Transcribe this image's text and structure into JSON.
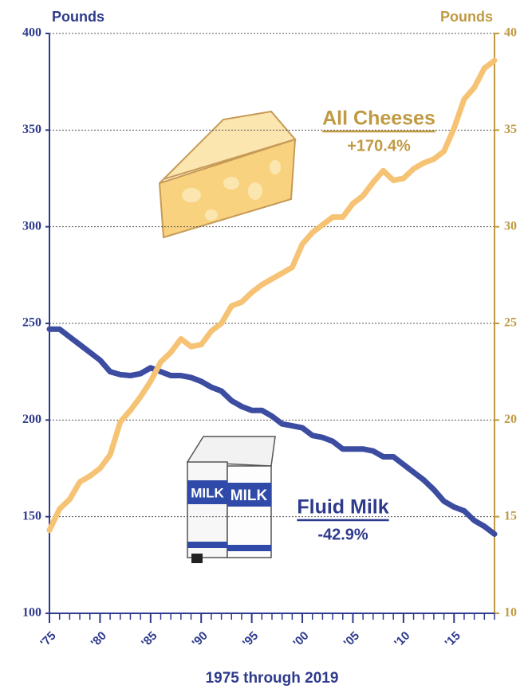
{
  "chart_data": {
    "type": "line",
    "y_label": "Pounds",
    "y2_label": "Pounds",
    "x_label": "1975 through 2019",
    "x": [
      1975,
      1976,
      1977,
      1978,
      1979,
      1980,
      1981,
      1982,
      1983,
      1984,
      1985,
      1986,
      1987,
      1988,
      1989,
      1990,
      1991,
      1992,
      1993,
      1994,
      1995,
      1996,
      1997,
      1998,
      1999,
      2000,
      2001,
      2002,
      2003,
      2004,
      2005,
      2006,
      2007,
      2008,
      2009,
      2010,
      2011,
      2012,
      2013,
      2014,
      2015,
      2016,
      2017,
      2018,
      2019
    ],
    "xlim": [
      1975,
      2019
    ],
    "xticks": [
      {
        "value": 1975,
        "label": "'75"
      },
      {
        "value": 1980,
        "label": "'80"
      },
      {
        "value": 1985,
        "label": "'85"
      },
      {
        "value": 1990,
        "label": "'90"
      },
      {
        "value": 1995,
        "label": "'95"
      },
      {
        "value": 2000,
        "label": "'00"
      },
      {
        "value": 2005,
        "label": "'05"
      },
      {
        "value": 2010,
        "label": "'10"
      },
      {
        "value": 2015,
        "label": "'15"
      }
    ],
    "ylim": [
      100,
      400
    ],
    "yticks": [
      100,
      150,
      200,
      250,
      300,
      350,
      400
    ],
    "y2lim": [
      10,
      40
    ],
    "y2ticks": [
      10,
      15,
      20,
      25,
      30,
      35,
      40
    ],
    "grid": true,
    "series": [
      {
        "name": "Fluid Milk",
        "change_label": "-42.9%",
        "color": "#3c4ca0",
        "axis": "y",
        "values": [
          247,
          247,
          243,
          239,
          235,
          231,
          225,
          223.5,
          223,
          224,
          227,
          225,
          223,
          223,
          222,
          220,
          217,
          215,
          210,
          207,
          205,
          205,
          202,
          198,
          197,
          196,
          192,
          191,
          189,
          185,
          185,
          185,
          184,
          181,
          181,
          177,
          173,
          169,
          164,
          158,
          155,
          153,
          148,
          145,
          141
        ]
      },
      {
        "name": "All Cheeses",
        "change_label": "+170.4%",
        "color": "#f6c374",
        "axis": "y2",
        "values": [
          14.3,
          15.4,
          15.9,
          16.8,
          17.1,
          17.5,
          18.2,
          19.9,
          20.5,
          21.2,
          22.0,
          23.0,
          23.5,
          24.2,
          23.8,
          23.9,
          24.6,
          25.0,
          25.9,
          26.1,
          26.6,
          27.0,
          27.3,
          27.6,
          27.9,
          29.1,
          29.7,
          30.1,
          30.5,
          30.5,
          31.2,
          31.6,
          32.3,
          32.9,
          32.4,
          32.5,
          33.0,
          33.3,
          33.5,
          33.9,
          35.1,
          36.6,
          37.2,
          38.2,
          38.6
        ]
      }
    ]
  }
}
